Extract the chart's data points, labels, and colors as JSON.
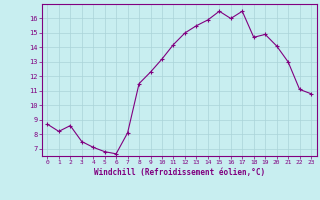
{
  "x": [
    0,
    1,
    2,
    3,
    4,
    5,
    6,
    7,
    8,
    9,
    10,
    11,
    12,
    13,
    14,
    15,
    16,
    17,
    18,
    19,
    20,
    21,
    22,
    23
  ],
  "y": [
    8.7,
    8.2,
    8.6,
    7.5,
    7.1,
    6.8,
    6.65,
    8.1,
    11.5,
    12.3,
    13.2,
    14.2,
    15.0,
    15.5,
    15.9,
    16.5,
    16.0,
    16.5,
    14.7,
    14.9,
    14.1,
    13.0,
    11.1,
    10.8
  ],
  "line_color": "#800080",
  "marker": "+",
  "bg_color": "#c8eef0",
  "grid_color": "#aad4d8",
  "xlabel": "Windchill (Refroidissement éolien,°C)",
  "ylim": [
    6.5,
    17.0
  ],
  "xlim": [
    -0.5,
    23.5
  ],
  "yticks": [
    7,
    8,
    9,
    10,
    11,
    12,
    13,
    14,
    15,
    16
  ],
  "xticks": [
    0,
    1,
    2,
    3,
    4,
    5,
    6,
    7,
    8,
    9,
    10,
    11,
    12,
    13,
    14,
    15,
    16,
    17,
    18,
    19,
    20,
    21,
    22,
    23
  ],
  "tick_color": "#800080",
  "label_color": "#800080",
  "font": "monospace"
}
